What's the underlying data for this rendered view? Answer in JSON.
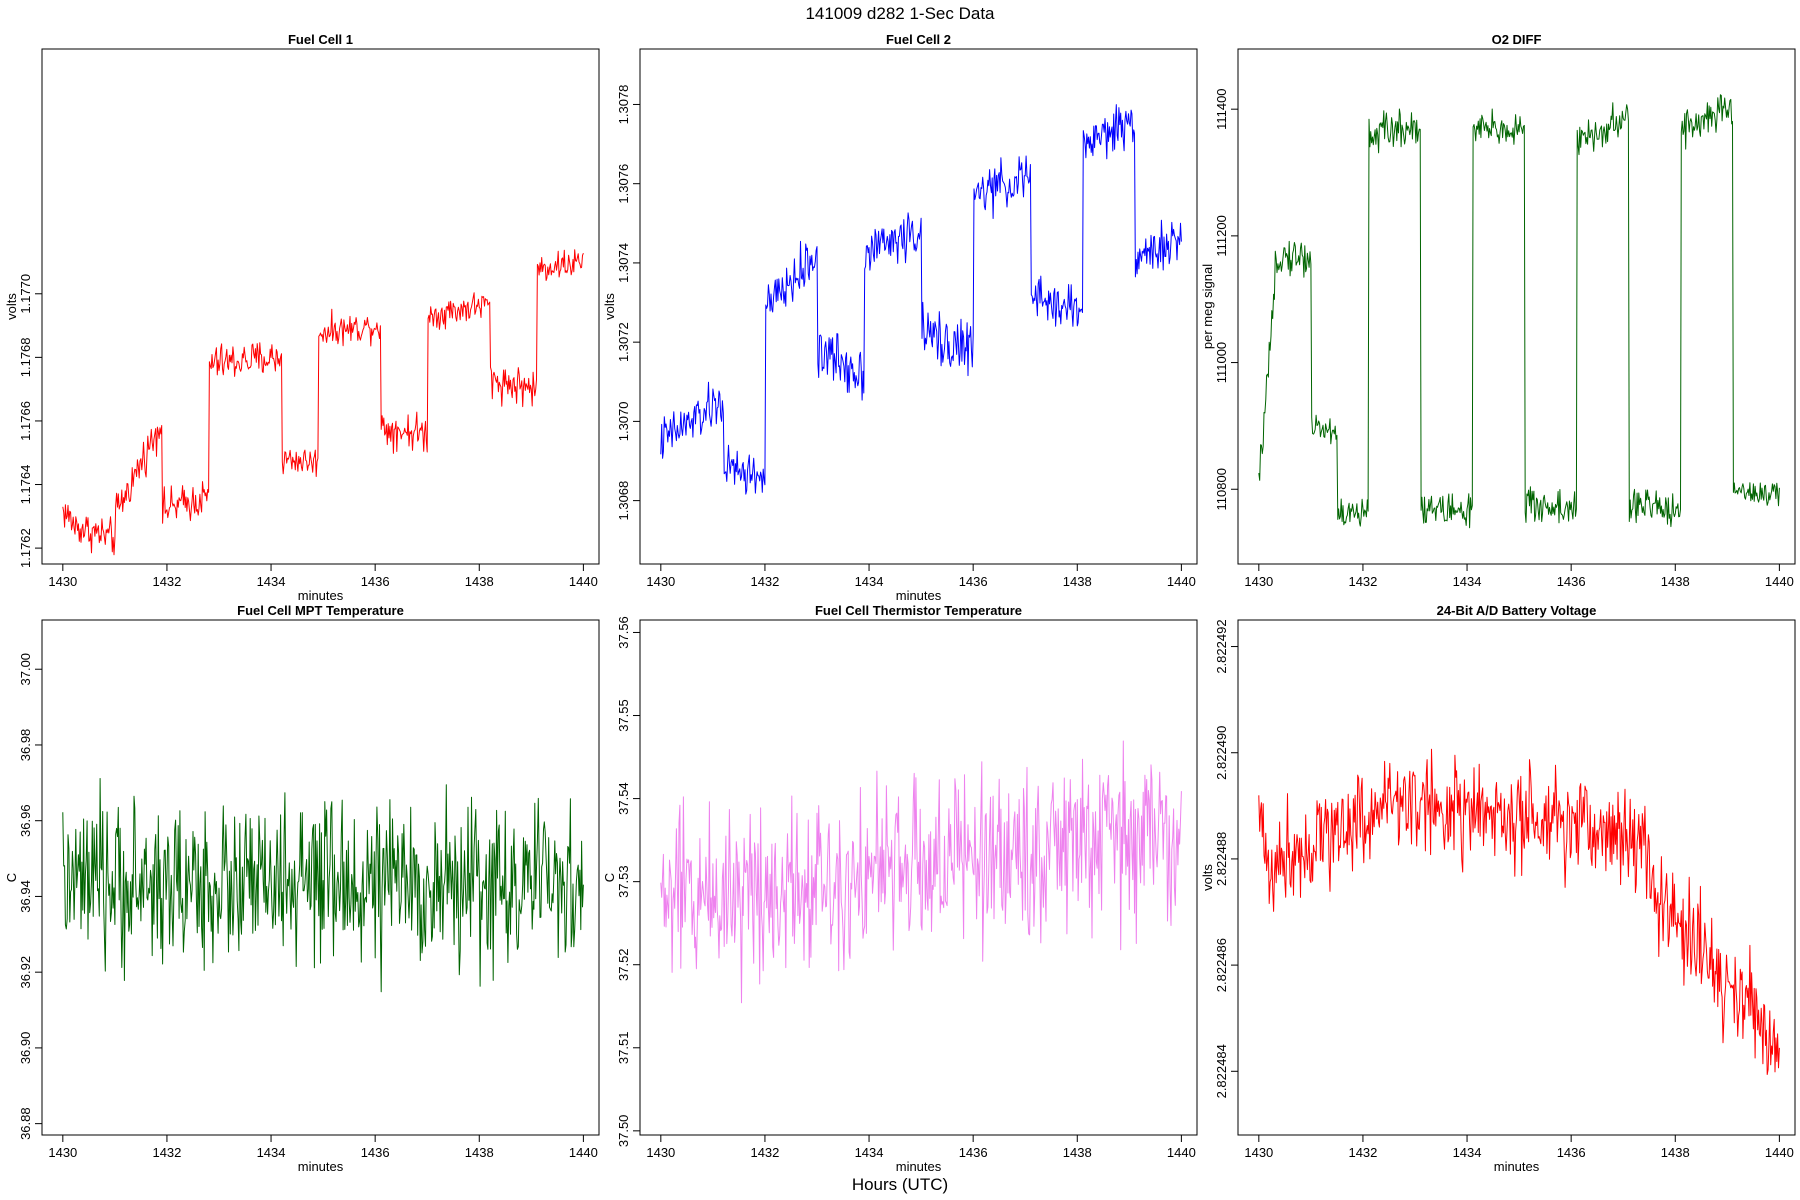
{
  "figure_title": "141009   d282   1-Sec Data",
  "common_xlabel": "Hours (UTC)",
  "chart_data": [
    {
      "type": "line",
      "title": "Fuel Cell 1",
      "xlabel": "minutes",
      "ylabel": "volts",
      "color": "#ff0000",
      "xlim": [
        1429.6,
        1440.3
      ],
      "ylim": [
        1.17615,
        1.17777
      ],
      "xticks": [
        1430,
        1432,
        1434,
        1436,
        1438,
        1440
      ],
      "xtick_labels": [
        "1430",
        "1432",
        "1434",
        "1436",
        "1438",
        "1440"
      ],
      "yticks": [
        1.1762,
        1.1764,
        1.1766,
        1.1768,
        1.177
      ],
      "ytick_labels": [
        "1.1762",
        "1.1764",
        "1.1766",
        "1.1768",
        "1.1770"
      ],
      "series": [
        {
          "name": "Fuel Cell 1",
          "levels": [
            {
              "x0": 1430.0,
              "x1": 1430.2,
              "from": 1.17632,
              "to": 1.17628,
              "noise": 5e-05
            },
            {
              "x0": 1430.2,
              "x1": 1431.0,
              "from": 1.17627,
              "to": 1.17623,
              "noise": 5e-05
            },
            {
              "x0": 1431.0,
              "x1": 1431.9,
              "from": 1.1763,
              "to": 1.1766,
              "noise": 5e-05
            },
            {
              "x0": 1431.9,
              "x1": 1432.8,
              "from": 1.17632,
              "to": 1.17636,
              "noise": 5e-05
            },
            {
              "x0": 1432.8,
              "x1": 1434.2,
              "from": 1.17678,
              "to": 1.1768,
              "noise": 5e-05
            },
            {
              "x0": 1434.2,
              "x1": 1434.9,
              "from": 1.17648,
              "to": 1.17647,
              "noise": 4e-05
            },
            {
              "x0": 1434.9,
              "x1": 1436.1,
              "from": 1.17688,
              "to": 1.1769,
              "noise": 4e-05
            },
            {
              "x0": 1436.1,
              "x1": 1437.0,
              "from": 1.17658,
              "to": 1.17656,
              "noise": 5e-05
            },
            {
              "x0": 1437.0,
              "x1": 1438.2,
              "from": 1.17693,
              "to": 1.17697,
              "noise": 4e-05
            },
            {
              "x0": 1438.2,
              "x1": 1439.1,
              "from": 1.17673,
              "to": 1.1767,
              "noise": 5e-05
            },
            {
              "x0": 1439.1,
              "x1": 1440.0,
              "from": 1.17708,
              "to": 1.1771,
              "noise": 4e-05
            }
          ]
        }
      ]
    },
    {
      "type": "line",
      "title": "Fuel Cell 2",
      "xlabel": "minutes",
      "ylabel": "volts",
      "color": "#0000ff",
      "xlim": [
        1429.6,
        1440.3
      ],
      "ylim": [
        1.30664,
        1.30794
      ],
      "xticks": [
        1430,
        1432,
        1434,
        1436,
        1438,
        1440
      ],
      "xtick_labels": [
        "1430",
        "1432",
        "1434",
        "1436",
        "1438",
        "1440"
      ],
      "yticks": [
        1.3068,
        1.307,
        1.3072,
        1.3074,
        1.3076,
        1.3078
      ],
      "ytick_labels": [
        "1.3068",
        "1.3070",
        "1.3072",
        "1.3074",
        "1.3076",
        "1.3078"
      ],
      "series": [
        {
          "name": "Fuel Cell 2",
          "levels": [
            {
              "x0": 1430.0,
              "x1": 1431.2,
              "from": 1.30695,
              "to": 1.30705,
              "noise": 5e-05
            },
            {
              "x0": 1431.2,
              "x1": 1432.0,
              "from": 1.30688,
              "to": 1.30686,
              "noise": 5e-05
            },
            {
              "x0": 1432.0,
              "x1": 1433.0,
              "from": 1.30728,
              "to": 1.30742,
              "noise": 5e-05
            },
            {
              "x0": 1433.0,
              "x1": 1433.9,
              "from": 1.30718,
              "to": 1.30712,
              "noise": 6e-05
            },
            {
              "x0": 1433.9,
              "x1": 1435.0,
              "from": 1.30743,
              "to": 1.30748,
              "noise": 5e-05
            },
            {
              "x0": 1435.0,
              "x1": 1436.0,
              "from": 1.30722,
              "to": 1.30718,
              "noise": 6e-05
            },
            {
              "x0": 1436.0,
              "x1": 1437.1,
              "from": 1.30757,
              "to": 1.30762,
              "noise": 5e-05
            },
            {
              "x0": 1437.1,
              "x1": 1438.1,
              "from": 1.30731,
              "to": 1.30728,
              "noise": 5e-05
            },
            {
              "x0": 1438.1,
              "x1": 1439.1,
              "from": 1.3077,
              "to": 1.30776,
              "noise": 5e-05
            },
            {
              "x0": 1439.1,
              "x1": 1440.0,
              "from": 1.30742,
              "to": 1.30745,
              "noise": 5e-05
            }
          ]
        }
      ]
    },
    {
      "type": "line",
      "title": "O2 DIFF",
      "xlabel": "",
      "ylabel": "per meg signal",
      "color": "#006400",
      "xlim": [
        1429.6,
        1440.3
      ],
      "ylim": [
        110682,
        111495
      ],
      "xticks": [
        1430,
        1432,
        1434,
        1436,
        1438,
        1440
      ],
      "xtick_labels": [
        "1430",
        "1432",
        "1434",
        "1436",
        "1438",
        "1440"
      ],
      "yticks": [
        110800,
        111000,
        111200,
        111400
      ],
      "ytick_labels": [
        "110800",
        "111000",
        "111200",
        "111400"
      ],
      "series": [
        {
          "name": "O2 DIFF",
          "levels": [
            {
              "x0": 1430.0,
              "x1": 1430.3,
              "from": 110810,
              "to": 111100,
              "noise": 20
            },
            {
              "x0": 1430.3,
              "x1": 1431.0,
              "from": 111170,
              "to": 111165,
              "noise": 25
            },
            {
              "x0": 1431.0,
              "x1": 1431.5,
              "from": 110900,
              "to": 110890,
              "noise": 20
            },
            {
              "x0": 1431.5,
              "x1": 1432.1,
              "from": 110760,
              "to": 110760,
              "noise": 25
            },
            {
              "x0": 1432.1,
              "x1": 1433.1,
              "from": 111360,
              "to": 111375,
              "noise": 25
            },
            {
              "x0": 1433.1,
              "x1": 1434.1,
              "from": 110770,
              "to": 110765,
              "noise": 25
            },
            {
              "x0": 1434.1,
              "x1": 1435.1,
              "from": 111365,
              "to": 111370,
              "noise": 25
            },
            {
              "x0": 1435.1,
              "x1": 1436.1,
              "from": 110775,
              "to": 110770,
              "noise": 25
            },
            {
              "x0": 1436.1,
              "x1": 1437.1,
              "from": 111345,
              "to": 111385,
              "noise": 25
            },
            {
              "x0": 1437.1,
              "x1": 1438.1,
              "from": 110775,
              "to": 110770,
              "noise": 25
            },
            {
              "x0": 1438.1,
              "x1": 1439.1,
              "from": 111370,
              "to": 111400,
              "noise": 25
            },
            {
              "x0": 1439.1,
              "x1": 1440.0,
              "from": 110800,
              "to": 110790,
              "noise": 20
            }
          ]
        }
      ]
    },
    {
      "type": "line",
      "title": "Fuel Cell MPT Temperature",
      "xlabel": "minutes",
      "ylabel": "C",
      "color": "#006400",
      "xlim": [
        1429.6,
        1440.3
      ],
      "ylim": [
        36.877,
        37.013
      ],
      "xticks": [
        1430,
        1432,
        1434,
        1436,
        1438,
        1440
      ],
      "xtick_labels": [
        "1430",
        "1432",
        "1434",
        "1436",
        "1438",
        "1440"
      ],
      "yticks": [
        36.88,
        36.9,
        36.92,
        36.94,
        36.96,
        36.98,
        37.0
      ],
      "ytick_labels": [
        "36.88",
        "36.90",
        "36.92",
        "36.94",
        "36.96",
        "36.98",
        "37.00"
      ],
      "series": [
        {
          "name": "Fuel Cell MPT Temperature",
          "levels": [
            {
              "x0": 1430.0,
              "x1": 1440.0,
              "from": 36.943,
              "to": 36.943,
              "noise": 0.018
            }
          ]
        }
      ]
    },
    {
      "type": "line",
      "title": "Fuel Cell Thermistor Temperature",
      "xlabel": "minutes",
      "ylabel": "C",
      "color": "#ee82ee",
      "xlim": [
        1429.6,
        1440.3
      ],
      "ylim": [
        37.4995,
        37.5615
      ],
      "xticks": [
        1430,
        1432,
        1434,
        1436,
        1438,
        1440
      ],
      "xtick_labels": [
        "1430",
        "1432",
        "1434",
        "1436",
        "1438",
        "1440"
      ],
      "yticks": [
        37.5,
        37.51,
        37.52,
        37.53,
        37.54,
        37.55,
        37.56
      ],
      "ytick_labels": [
        "37.50",
        "37.51",
        "37.52",
        "37.53",
        "37.54",
        "37.55",
        "37.56"
      ],
      "series": [
        {
          "name": "Fuel Cell Thermistor Temperature",
          "levels": [
            {
              "x0": 1430.0,
              "x1": 1440.0,
              "from": 37.528,
              "to": 37.536,
              "noise": 0.009
            }
          ]
        }
      ]
    },
    {
      "type": "line",
      "title": "24-Bit A/D Battery Voltage",
      "xlabel": "minutes",
      "ylabel": "volts",
      "color": "#ff0000",
      "xlim": [
        1429.6,
        1440.3
      ],
      "ylim": [
        2.8224828,
        2.8224925
      ],
      "xticks": [
        1430,
        1432,
        1434,
        1436,
        1438,
        1440
      ],
      "xtick_labels": [
        "1430",
        "1432",
        "1434",
        "1436",
        "1438",
        "1440"
      ],
      "yticks": [
        2.822484,
        2.822486,
        2.822488,
        2.82249,
        2.822492
      ],
      "ytick_labels": [
        "2.822484",
        "2.822486",
        "2.822488",
        "2.822490",
        "2.822492"
      ],
      "series": [
        {
          "name": "24-Bit A/D Battery Voltage",
          "levels": [
            {
              "x0": 1430.0,
              "x1": 1430.3,
              "from": 2.8224888,
              "to": 2.8224875,
              "noise": 8e-07
            },
            {
              "x0": 1430.3,
              "x1": 1432.8,
              "from": 2.822488,
              "to": 2.8224892,
              "noise": 8e-07
            },
            {
              "x0": 1432.8,
              "x1": 1436.0,
              "from": 2.8224891,
              "to": 2.8224885,
              "noise": 8e-07
            },
            {
              "x0": 1436.0,
              "x1": 1437.5,
              "from": 2.8224887,
              "to": 2.8224883,
              "noise": 8e-07
            },
            {
              "x0": 1437.5,
              "x1": 1440.0,
              "from": 2.8224874,
              "to": 2.8224845,
              "noise": 9e-07
            }
          ]
        }
      ]
    }
  ]
}
